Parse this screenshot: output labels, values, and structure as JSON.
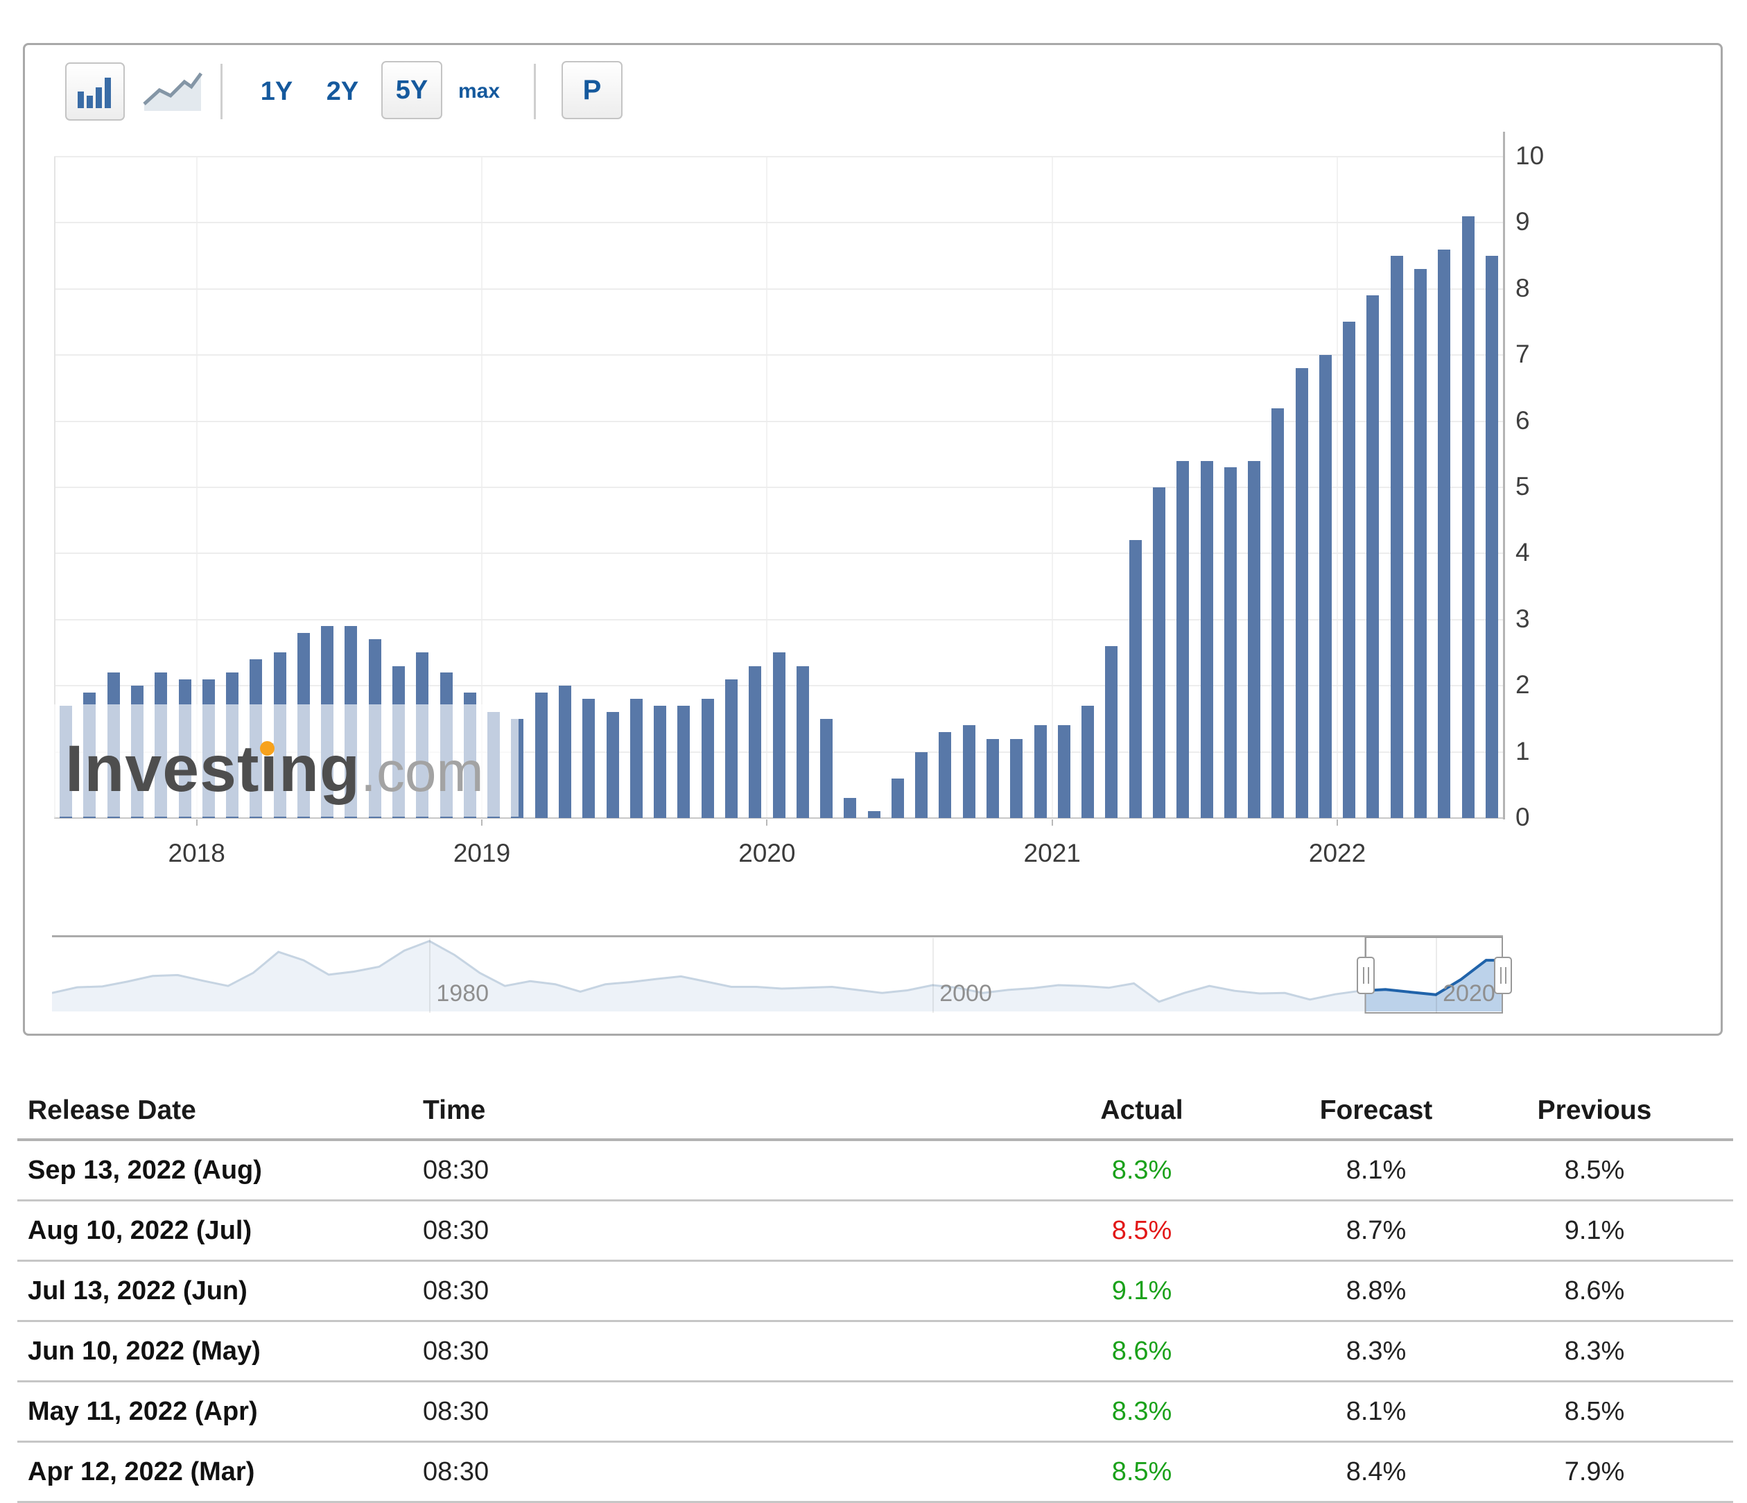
{
  "colors": {
    "bar": "#5878a8",
    "accent_blue": "#15599d",
    "actual_green": "#1aa11a",
    "actual_red": "#e21717",
    "nav_line_selected": "#2063aa",
    "nav_line": "#c6d4e2"
  },
  "toolbar": {
    "chart_types": [
      {
        "name": "bar-chart",
        "selected": true
      },
      {
        "name": "line-chart",
        "selected": false
      }
    ],
    "ranges": [
      {
        "label": "1Y",
        "selected": false
      },
      {
        "label": "2Y",
        "selected": false
      },
      {
        "label": "5Y",
        "selected": true
      },
      {
        "label": "max",
        "selected": false
      }
    ],
    "p_button_label": "P"
  },
  "watermark": {
    "part1": "Invest",
    "dot_i": "i",
    "part2": "ng",
    "suffix": ".com"
  },
  "chart_data": {
    "main": {
      "type": "bar",
      "title": "US CPI year-over-year (%), monthly",
      "start_month": "2017-07",
      "values": [
        1.7,
        1.9,
        2.2,
        2.0,
        2.2,
        2.1,
        2.1,
        2.2,
        2.4,
        2.5,
        2.8,
        2.9,
        2.9,
        2.7,
        2.3,
        2.5,
        2.2,
        1.9,
        1.6,
        1.5,
        1.9,
        2.0,
        1.8,
        1.6,
        1.8,
        1.7,
        1.7,
        1.8,
        2.1,
        2.3,
        2.5,
        2.3,
        1.5,
        0.3,
        0.1,
        0.6,
        1.0,
        1.3,
        1.4,
        1.2,
        1.2,
        1.4,
        1.4,
        1.7,
        2.6,
        4.2,
        5.0,
        5.4,
        5.4,
        5.3,
        5.4,
        6.2,
        6.8,
        7.0,
        7.5,
        7.9,
        8.5,
        8.3,
        8.6,
        9.1,
        8.5
      ],
      "ylim": [
        0,
        10
      ],
      "y_ticks": [
        "0",
        "1",
        "2",
        "3",
        "4",
        "5",
        "6",
        "7",
        "8",
        "9",
        "10"
      ],
      "year_ticks": [
        {
          "label": "2018",
          "index": 6
        },
        {
          "label": "2019",
          "index": 18
        },
        {
          "label": "2020",
          "index": 30
        },
        {
          "label": "2021",
          "index": 42
        },
        {
          "label": "2022",
          "index": 54
        }
      ],
      "grid": true,
      "legend": "none"
    },
    "navigator": {
      "type": "area",
      "title": "CPI YoY full history thumbnail",
      "years": [
        1965,
        1966,
        1967,
        1968,
        1969,
        1970,
        1971,
        1972,
        1973,
        1974,
        1975,
        1976,
        1977,
        1978,
        1979,
        1980,
        1981,
        1982,
        1983,
        1984,
        1985,
        1986,
        1987,
        1988,
        1989,
        1990,
        1991,
        1992,
        1993,
        1994,
        1995,
        1996,
        1997,
        1998,
        1999,
        2000,
        2001,
        2002,
        2003,
        2004,
        2005,
        2006,
        2007,
        2008,
        2009,
        2010,
        2011,
        2012,
        2013,
        2014,
        2015,
        2016,
        2017,
        2018,
        2019,
        2020,
        2021,
        2022
      ],
      "values": [
        1.6,
        2.9,
        3.1,
        4.2,
        5.5,
        5.7,
        4.4,
        3.2,
        6.2,
        11.0,
        9.1,
        5.8,
        6.5,
        7.6,
        11.3,
        13.5,
        10.3,
        6.2,
        3.2,
        4.3,
        3.6,
        1.9,
        3.6,
        4.1,
        4.8,
        5.4,
        4.2,
        3.0,
        3.0,
        2.6,
        2.8,
        3.0,
        2.3,
        1.6,
        2.2,
        3.4,
        2.8,
        1.6,
        2.3,
        2.7,
        3.4,
        3.2,
        2.8,
        3.8,
        -0.4,
        1.6,
        3.2,
        2.1,
        1.5,
        1.6,
        0.1,
        1.3,
        2.1,
        2.4,
        1.8,
        1.2,
        4.7,
        9.1
      ],
      "tick_labels": [
        {
          "label": "1980",
          "year": 1980
        },
        {
          "label": "2000",
          "year": 2000
        },
        {
          "label": "2020",
          "year": 2020
        }
      ],
      "selected_range_years": [
        2017.2,
        2022.6
      ]
    }
  },
  "table": {
    "headers": [
      "Release Date",
      "Time",
      "Actual",
      "Forecast",
      "Previous"
    ],
    "rows": [
      {
        "release_date": "Sep 13, 2022 (Aug)",
        "time": "08:30",
        "actual": "8.3%",
        "actual_color": "green",
        "forecast": "8.1%",
        "previous": "8.5%"
      },
      {
        "release_date": "Aug 10, 2022 (Jul)",
        "time": "08:30",
        "actual": "8.5%",
        "actual_color": "red",
        "forecast": "8.7%",
        "previous": "9.1%"
      },
      {
        "release_date": "Jul 13, 2022 (Jun)",
        "time": "08:30",
        "actual": "9.1%",
        "actual_color": "green",
        "forecast": "8.8%",
        "previous": "8.6%"
      },
      {
        "release_date": "Jun 10, 2022 (May)",
        "time": "08:30",
        "actual": "8.6%",
        "actual_color": "green",
        "forecast": "8.3%",
        "previous": "8.3%"
      },
      {
        "release_date": "May 11, 2022 (Apr)",
        "time": "08:30",
        "actual": "8.3%",
        "actual_color": "green",
        "forecast": "8.1%",
        "previous": "8.5%"
      },
      {
        "release_date": "Apr 12, 2022 (Mar)",
        "time": "08:30",
        "actual": "8.5%",
        "actual_color": "green",
        "forecast": "8.4%",
        "previous": "7.9%"
      }
    ]
  }
}
